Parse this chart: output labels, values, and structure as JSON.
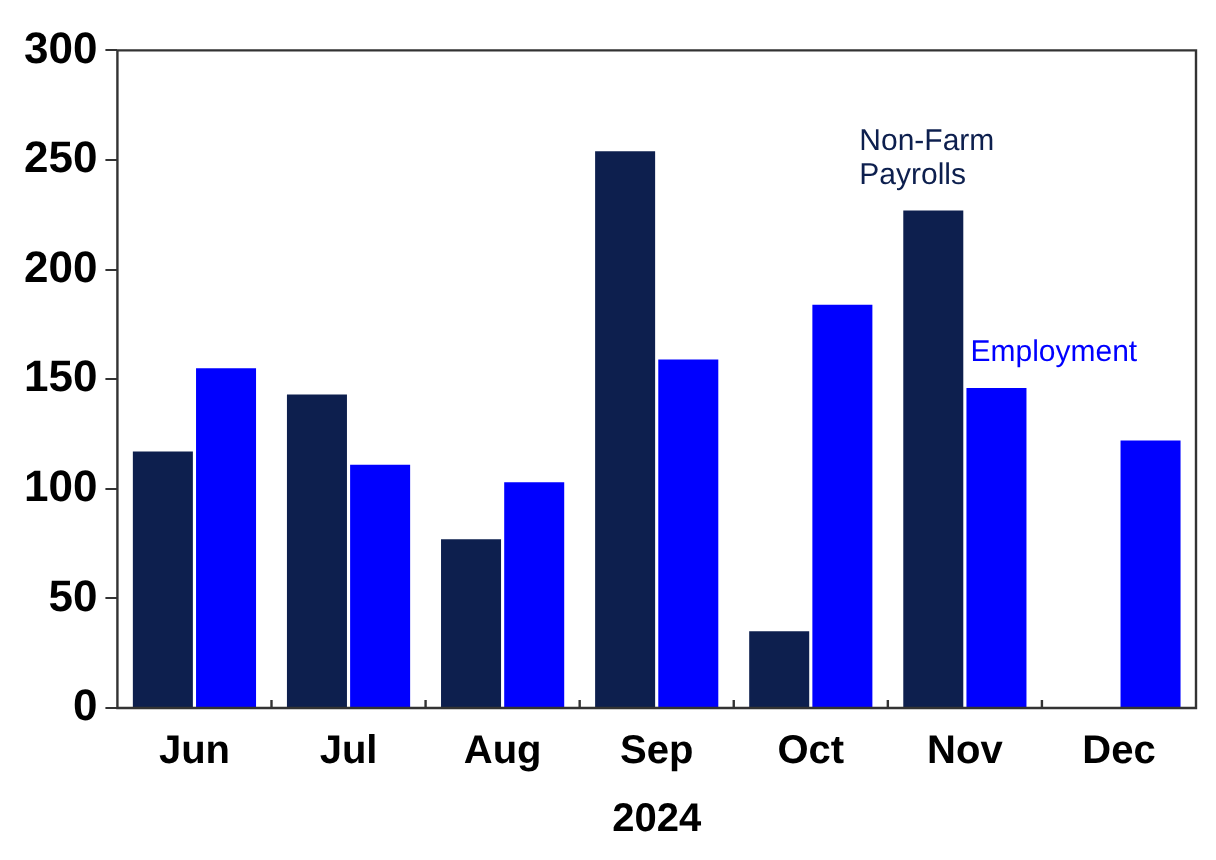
{
  "chart_data": {
    "type": "bar",
    "categories": [
      "Jun",
      "Jul",
      "Aug",
      "Sep",
      "Oct",
      "Nov",
      "Dec"
    ],
    "xlabel": "2024",
    "series": [
      {
        "name": "Non-Farm Payrolls",
        "color": "#0d1f4e",
        "values": [
          117,
          143,
          77,
          254,
          35,
          227,
          null
        ]
      },
      {
        "name": "Employment",
        "color": "#0000ff",
        "values": [
          155,
          111,
          103,
          159,
          184,
          146,
          122
        ]
      }
    ],
    "ylim": [
      0,
      300
    ],
    "yticks": [
      0,
      50,
      100,
      150,
      200,
      250,
      300
    ],
    "grid": false,
    "legend": false
  }
}
